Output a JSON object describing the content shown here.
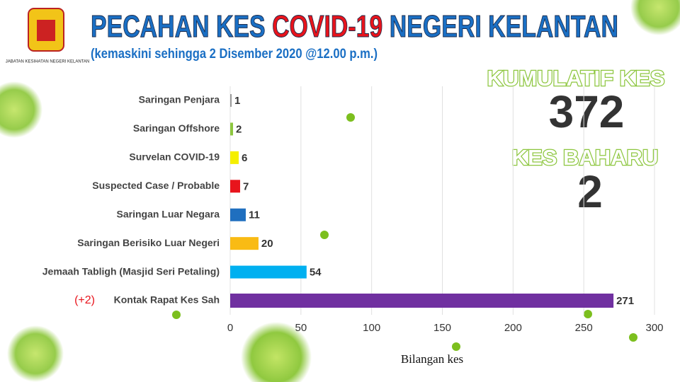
{
  "chart_data": {
    "type": "hbar",
    "agency": "JABATAN KESIHATAN NEGERI KELANTAN",
    "title_parts": [
      "PECAHAN KES ",
      "COVID-19",
      " NEGERI KELANTAN"
    ],
    "subtitle": "(kemaskini sehingga 2 Disember 2020 @12.00 p.m.)",
    "cumulative_label": "KUMULATIF KES",
    "cumulative_value": 372,
    "new_label": "KES BAHARU",
    "new_value": 2,
    "new_case_note": "(+2)",
    "categories": [
      "Saringan Penjara",
      "Saringan Offshore",
      "Survelan COVID-19",
      "Suspected Case / Probable",
      "Saringan Luar Negara",
      "Saringan Berisiko Luar Negeri",
      "Jemaah Tabligh (Masjid Seri Petaling)",
      "Kontak Rapat Kes Sah"
    ],
    "values": [
      1,
      2,
      6,
      7,
      11,
      20,
      54,
      271
    ],
    "colors": [
      "#9a9a9a",
      "#8dc63f",
      "#f5ef00",
      "#e8141c",
      "#1f6fbf",
      "#f9bb14",
      "#00b0f0",
      "#7030a0"
    ],
    "xlim": [
      0,
      300
    ],
    "xticks": [
      0,
      50,
      100,
      150,
      200,
      250,
      300
    ],
    "xlabel": "Bilangan kes",
    "grid": true
  }
}
